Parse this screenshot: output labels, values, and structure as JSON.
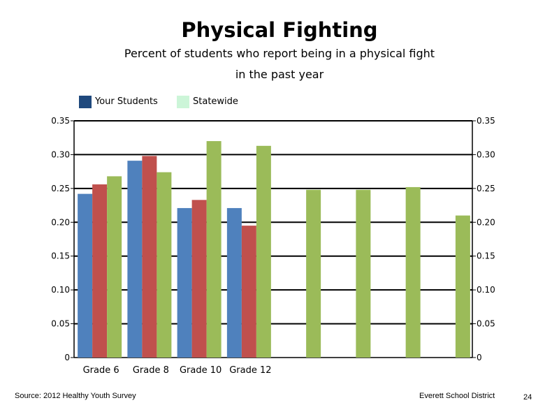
{
  "chart_data": {
    "type": "bar",
    "title": "Physical Fighting",
    "subtitle_line1": "Percent of students who report being in a physical fight",
    "subtitle_line2": "in the past year",
    "categories": [
      "Grade 6",
      "Grade 8",
      "Grade 10",
      "Grade 12",
      "",
      "",
      "",
      ""
    ],
    "series": [
      {
        "values": [
          0.242,
          0.291,
          0.221,
          0.221,
          null,
          null,
          null,
          null
        ],
        "color": "#4f81bd"
      },
      {
        "values": [
          0.256,
          0.298,
          0.233,
          0.195,
          null,
          null,
          null,
          null
        ],
        "color": "#c0504d"
      },
      {
        "values": [
          0.268,
          0.274,
          0.32,
          0.313,
          0.248,
          0.248,
          0.252,
          0.21
        ],
        "color": "#9bbb59"
      }
    ],
    "ylim": [
      0,
      0.35
    ],
    "yticks": [
      "0",
      "0.05",
      "0.10",
      "0.15",
      "0.20",
      "0.25",
      "0.30",
      "0.35"
    ],
    "ytick_values": [
      0,
      0.05,
      0.1,
      0.15,
      0.2,
      0.25,
      0.3,
      0.35
    ],
    "right_axis": true,
    "grid": true,
    "legend_position": "top-left"
  },
  "legend": [
    {
      "label": "Your Students",
      "color": "#1f497d"
    },
    {
      "label": "Statewide",
      "color": "#ccf5d8"
    }
  ],
  "footer": {
    "source": "Source: 2012 Healthy Youth Survey",
    "org": "Everett School District",
    "page": "24"
  }
}
